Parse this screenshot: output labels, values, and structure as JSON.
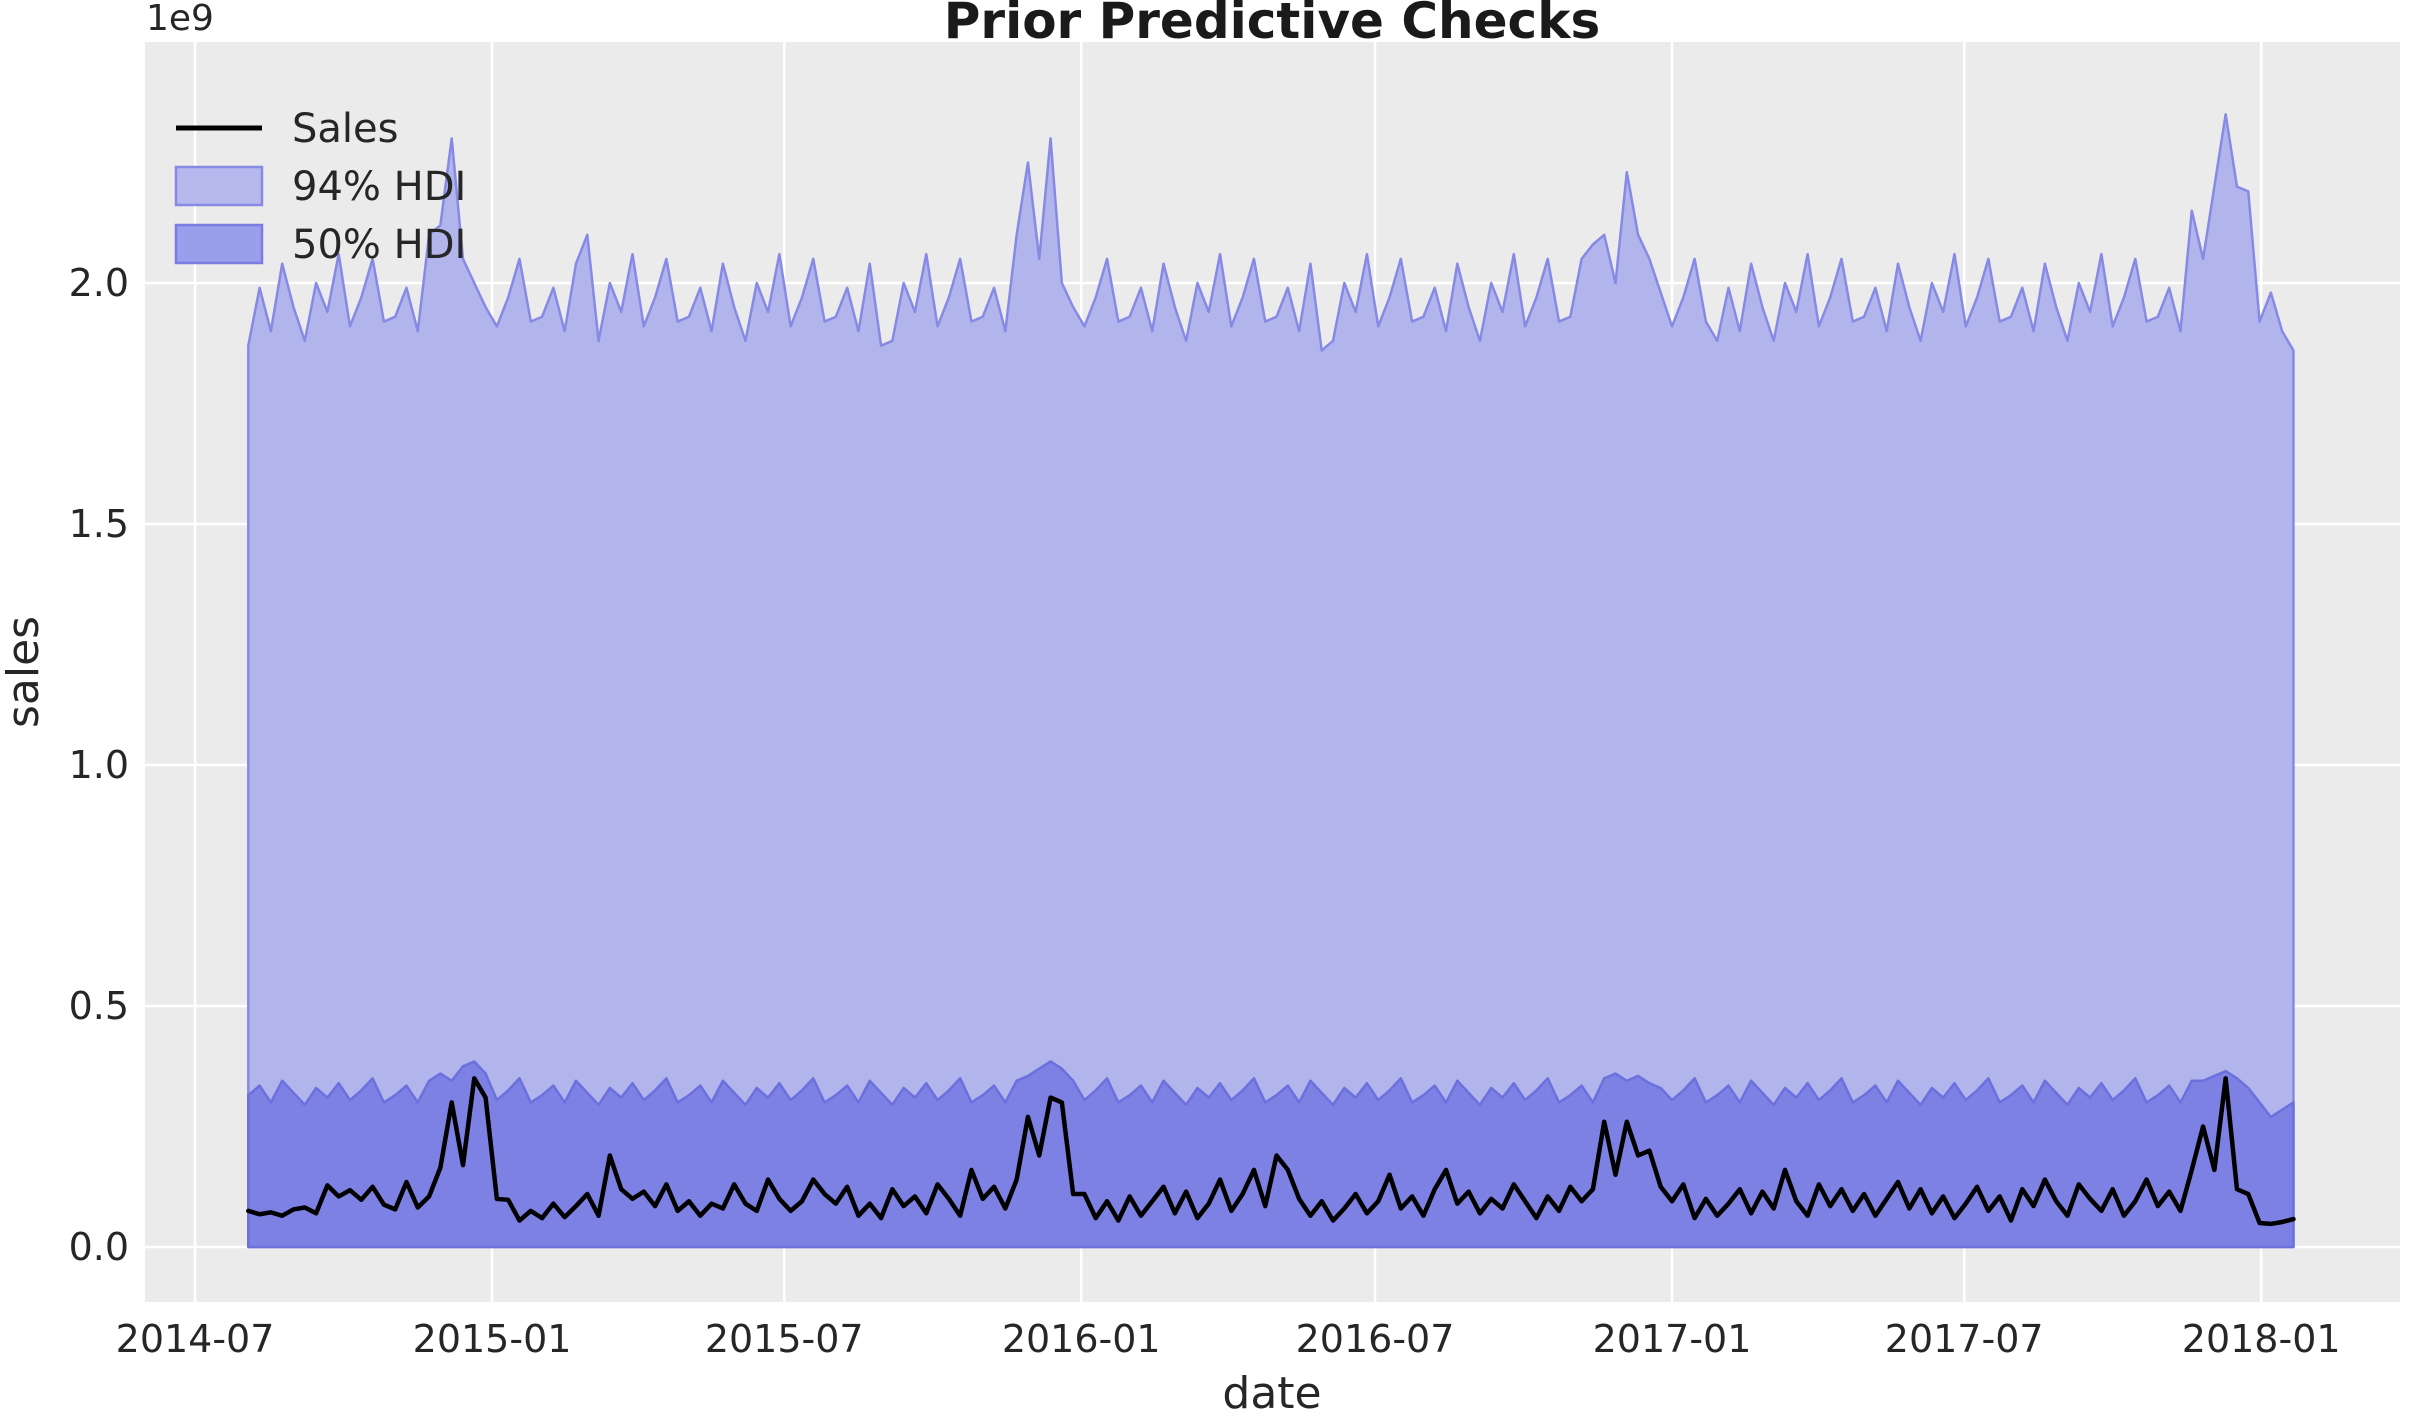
{
  "figure": {
    "title": "Prior Predictive Checks",
    "xlabel": "date",
    "ylabel": "sales",
    "offset_text": "1e9",
    "legend": {
      "position": "upper left",
      "items": [
        {
          "label": "Sales",
          "type": "line",
          "color": "#000000"
        },
        {
          "label": "94% HDI",
          "type": "patch",
          "fill": "#b6b8ed",
          "edge": "#868ae5"
        },
        {
          "label": "50% HDI",
          "type": "patch",
          "fill": "#9b9eea",
          "edge": "#7a7ee3"
        }
      ]
    },
    "colors": {
      "plot_background": "#ebebeb",
      "gridline": "#ffffff",
      "band94_fill": "#b2b4ec",
      "band94_edge": "#868ae5",
      "band50_fill": "#7c81e3",
      "band50_edge": "#6b70dd",
      "sales_line": "#000000",
      "text": "#262626"
    }
  },
  "chart_data": {
    "type": "area",
    "title": "Prior Predictive Checks",
    "xlabel": "date",
    "ylabel": "sales",
    "y_scale_factor": "1e9",
    "grid": true,
    "legend_position": "upper left",
    "x_tick_labels": [
      "2014-07",
      "2015-01",
      "2015-07",
      "2016-01",
      "2016-07",
      "2017-01",
      "2017-07",
      "2018-01"
    ],
    "y_tick_labels": [
      "0.0",
      "0.5",
      "1.0",
      "1.5",
      "2.0"
    ],
    "y_tick_values_1e9": [
      0,
      0.5,
      1.0,
      1.5,
      2.0
    ],
    "ylim_1e9": [
      -0.114,
      2.5
    ],
    "xlim_dates": [
      "2014-05-31",
      "2018-03-28"
    ],
    "x_start_date": "2014-08-03",
    "x_step_days": 7,
    "n_points": 182,
    "series": [
      {
        "name": "Sales",
        "type": "line",
        "values_1e9": [
          0.075,
          0.068,
          0.072,
          0.065,
          0.078,
          0.082,
          0.07,
          0.128,
          0.105,
          0.118,
          0.098,
          0.125,
          0.088,
          0.078,
          0.135,
          0.082,
          0.105,
          0.165,
          0.3,
          0.17,
          0.35,
          0.31,
          0.1,
          0.098,
          0.055,
          0.075,
          0.06,
          0.09,
          0.062,
          0.085,
          0.11,
          0.065,
          0.19,
          0.12,
          0.1,
          0.115,
          0.085,
          0.13,
          0.075,
          0.095,
          0.065,
          0.09,
          0.08,
          0.13,
          0.09,
          0.075,
          0.14,
          0.1,
          0.075,
          0.095,
          0.14,
          0.11,
          0.09,
          0.125,
          0.065,
          0.09,
          0.06,
          0.12,
          0.085,
          0.105,
          0.07,
          0.13,
          0.1,
          0.065,
          0.16,
          0.1,
          0.125,
          0.08,
          0.14,
          0.27,
          0.19,
          0.31,
          0.3,
          0.11,
          0.11,
          0.06,
          0.095,
          0.055,
          0.105,
          0.065,
          0.095,
          0.125,
          0.07,
          0.115,
          0.06,
          0.09,
          0.14,
          0.075,
          0.11,
          0.16,
          0.085,
          0.19,
          0.16,
          0.1,
          0.065,
          0.095,
          0.055,
          0.08,
          0.11,
          0.07,
          0.095,
          0.15,
          0.08,
          0.105,
          0.065,
          0.12,
          0.16,
          0.09,
          0.115,
          0.07,
          0.1,
          0.08,
          0.13,
          0.095,
          0.06,
          0.105,
          0.075,
          0.125,
          0.095,
          0.12,
          0.26,
          0.15,
          0.26,
          0.19,
          0.2,
          0.125,
          0.095,
          0.13,
          0.06,
          0.1,
          0.065,
          0.09,
          0.12,
          0.07,
          0.115,
          0.08,
          0.16,
          0.095,
          0.065,
          0.13,
          0.085,
          0.12,
          0.075,
          0.11,
          0.065,
          0.1,
          0.135,
          0.08,
          0.12,
          0.07,
          0.105,
          0.06,
          0.09,
          0.125,
          0.075,
          0.105,
          0.055,
          0.12,
          0.085,
          0.14,
          0.095,
          0.065,
          0.13,
          0.1,
          0.075,
          0.12,
          0.065,
          0.095,
          0.14,
          0.085,
          0.115,
          0.075,
          0.16,
          0.25,
          0.16,
          0.35,
          0.12,
          0.11,
          0.05,
          0.048,
          0.052,
          0.058
        ]
      },
      {
        "name": "94% HDI",
        "type": "band",
        "lower_1e9": 0,
        "upper_values_1e9": [
          1.87,
          1.99,
          1.9,
          2.04,
          1.95,
          1.88,
          2.0,
          1.94,
          2.06,
          1.91,
          1.97,
          2.05,
          1.92,
          1.93,
          1.99,
          1.9,
          2.1,
          2.12,
          2.3,
          2.05,
          2.0,
          1.95,
          1.91,
          1.97,
          2.05,
          1.92,
          1.93,
          1.99,
          1.9,
          2.04,
          2.1,
          1.88,
          2.0,
          1.94,
          2.06,
          1.91,
          1.97,
          2.05,
          1.92,
          1.93,
          1.99,
          1.9,
          2.04,
          1.95,
          1.88,
          2.0,
          1.94,
          2.06,
          1.91,
          1.97,
          2.05,
          1.92,
          1.93,
          1.99,
          1.9,
          2.04,
          1.87,
          1.88,
          2.0,
          1.94,
          2.06,
          1.91,
          1.97,
          2.05,
          1.92,
          1.93,
          1.99,
          1.9,
          2.1,
          2.25,
          2.05,
          2.3,
          2.0,
          1.95,
          1.91,
          1.97,
          2.05,
          1.92,
          1.93,
          1.99,
          1.9,
          2.04,
          1.95,
          1.88,
          2.0,
          1.94,
          2.06,
          1.91,
          1.97,
          2.05,
          1.92,
          1.93,
          1.99,
          1.9,
          2.04,
          1.86,
          1.88,
          2.0,
          1.94,
          2.06,
          1.91,
          1.97,
          2.05,
          1.92,
          1.93,
          1.99,
          1.9,
          2.04,
          1.95,
          1.88,
          2.0,
          1.94,
          2.06,
          1.91,
          1.97,
          2.05,
          1.92,
          1.93,
          2.05,
          2.08,
          2.1,
          2.0,
          2.23,
          2.1,
          2.05,
          1.98,
          1.91,
          1.97,
          2.05,
          1.92,
          1.88,
          1.99,
          1.9,
          2.04,
          1.95,
          1.88,
          2.0,
          1.94,
          2.06,
          1.91,
          1.97,
          2.05,
          1.92,
          1.93,
          1.99,
          1.9,
          2.04,
          1.95,
          1.88,
          2.0,
          1.94,
          2.06,
          1.91,
          1.97,
          2.05,
          1.92,
          1.93,
          1.99,
          1.9,
          2.04,
          1.95,
          1.88,
          2.0,
          1.94,
          2.06,
          1.91,
          1.97,
          2.05,
          1.92,
          1.93,
          1.99,
          1.9,
          2.15,
          2.05,
          2.2,
          2.35,
          2.2,
          2.19,
          1.92,
          1.98,
          1.9,
          1.86
        ]
      },
      {
        "name": "50% HDI",
        "type": "band",
        "lower_1e9": 0,
        "upper_values_1e9": [
          0.315,
          0.335,
          0.3,
          0.345,
          0.32,
          0.295,
          0.33,
          0.31,
          0.34,
          0.305,
          0.325,
          0.35,
          0.3,
          0.315,
          0.335,
          0.3,
          0.345,
          0.36,
          0.345,
          0.375,
          0.385,
          0.36,
          0.305,
          0.325,
          0.35,
          0.3,
          0.315,
          0.335,
          0.3,
          0.345,
          0.32,
          0.295,
          0.33,
          0.31,
          0.34,
          0.305,
          0.325,
          0.35,
          0.3,
          0.315,
          0.335,
          0.3,
          0.345,
          0.32,
          0.295,
          0.33,
          0.31,
          0.34,
          0.305,
          0.325,
          0.35,
          0.3,
          0.315,
          0.335,
          0.3,
          0.345,
          0.32,
          0.295,
          0.33,
          0.31,
          0.34,
          0.305,
          0.325,
          0.35,
          0.3,
          0.315,
          0.335,
          0.3,
          0.345,
          0.355,
          0.37,
          0.385,
          0.37,
          0.345,
          0.305,
          0.325,
          0.35,
          0.3,
          0.315,
          0.335,
          0.3,
          0.345,
          0.32,
          0.295,
          0.33,
          0.31,
          0.34,
          0.305,
          0.325,
          0.35,
          0.3,
          0.315,
          0.335,
          0.3,
          0.345,
          0.32,
          0.295,
          0.33,
          0.31,
          0.34,
          0.305,
          0.325,
          0.35,
          0.3,
          0.315,
          0.335,
          0.3,
          0.345,
          0.32,
          0.295,
          0.33,
          0.31,
          0.34,
          0.305,
          0.325,
          0.35,
          0.3,
          0.315,
          0.335,
          0.3,
          0.35,
          0.36,
          0.345,
          0.355,
          0.34,
          0.33,
          0.305,
          0.325,
          0.35,
          0.3,
          0.315,
          0.335,
          0.3,
          0.345,
          0.32,
          0.295,
          0.33,
          0.31,
          0.34,
          0.305,
          0.325,
          0.35,
          0.3,
          0.315,
          0.335,
          0.3,
          0.345,
          0.32,
          0.295,
          0.33,
          0.31,
          0.34,
          0.305,
          0.325,
          0.35,
          0.3,
          0.315,
          0.335,
          0.3,
          0.345,
          0.32,
          0.295,
          0.33,
          0.31,
          0.34,
          0.305,
          0.325,
          0.35,
          0.3,
          0.315,
          0.335,
          0.3,
          0.345,
          0.345,
          0.355,
          0.365,
          0.35,
          0.33,
          0.3,
          0.27,
          0.285,
          0.3
        ]
      }
    ]
  }
}
